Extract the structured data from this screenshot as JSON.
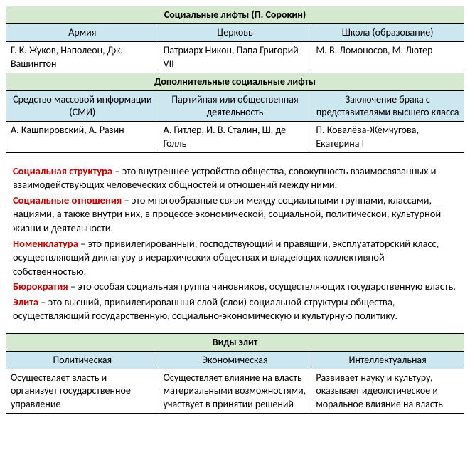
{
  "table1": {
    "title": "Социальные лифты (П. Сорокин)",
    "headers": [
      "Армия",
      "Церковь",
      "Школа (образование)"
    ],
    "row": [
      "Г. К. Жуков, Наполеон, Дж. Вашингтон",
      "Патриарх Никон, Папа Григорий VII",
      "М. В. Ломоносов, М. Лютер"
    ],
    "subtitle": "Дополнительные социальные лифты",
    "headers2": [
      "Средство массовой информации (СМИ)",
      "Партийная или общественная деятельность",
      "Заключение брака с представителями высшего класса"
    ],
    "row2": [
      "А. Кашпировский, А. Разин",
      "А. Гитлер, И. В. Сталин, Ш. де Голль",
      "П. Ковалёва-Жемчугова, Екатерина I"
    ]
  },
  "defs": [
    {
      "term": "Социальная структура",
      "text": " – это внутреннее устройство общества, совокупность взаимосвязанных и взаимодействующих человеческих общностей и отношений между ними."
    },
    {
      "term": "Социальные отношения",
      "text": " – это многообразные связи между социальными группами, классами, нациями, а также внутри них, в процессе экономической, социальной, политической, культурной жизни и деятельности."
    },
    {
      "term": "Номенклатура",
      "text": " – это привилегированный, господствующий и правящий, эксплуататорский класс, осуществляющий диктатуру в иерархических обществах и владеющих коллективной собственностью."
    },
    {
      "term": "Бюрократия",
      "text": " – это особая социальная группа чиновников, осуществляющих государственную власть."
    },
    {
      "term": "Элита",
      "text": " – это высший, привилегированный слой (слои) социальной структуры общества, осуществляющий государственную, социально-экономическую и культурную политику."
    }
  ],
  "table2": {
    "title": "Виды элит",
    "headers": [
      "Политическая",
      "Экономическая",
      "Интеллектуальная"
    ],
    "row": [
      "Осуществляет власть и организует государственное управление",
      "Осуществляет влияние на власть материальными возможностями, участвует в принятии решений",
      "Развивает науку и культуру, оказывает идеологическое и моральное влияние на власть"
    ]
  },
  "colors": {
    "green": "#d5e8d0",
    "blue": "#cce7f0",
    "term": "#c00000",
    "border": "#000000",
    "bg": "#ffffff"
  }
}
